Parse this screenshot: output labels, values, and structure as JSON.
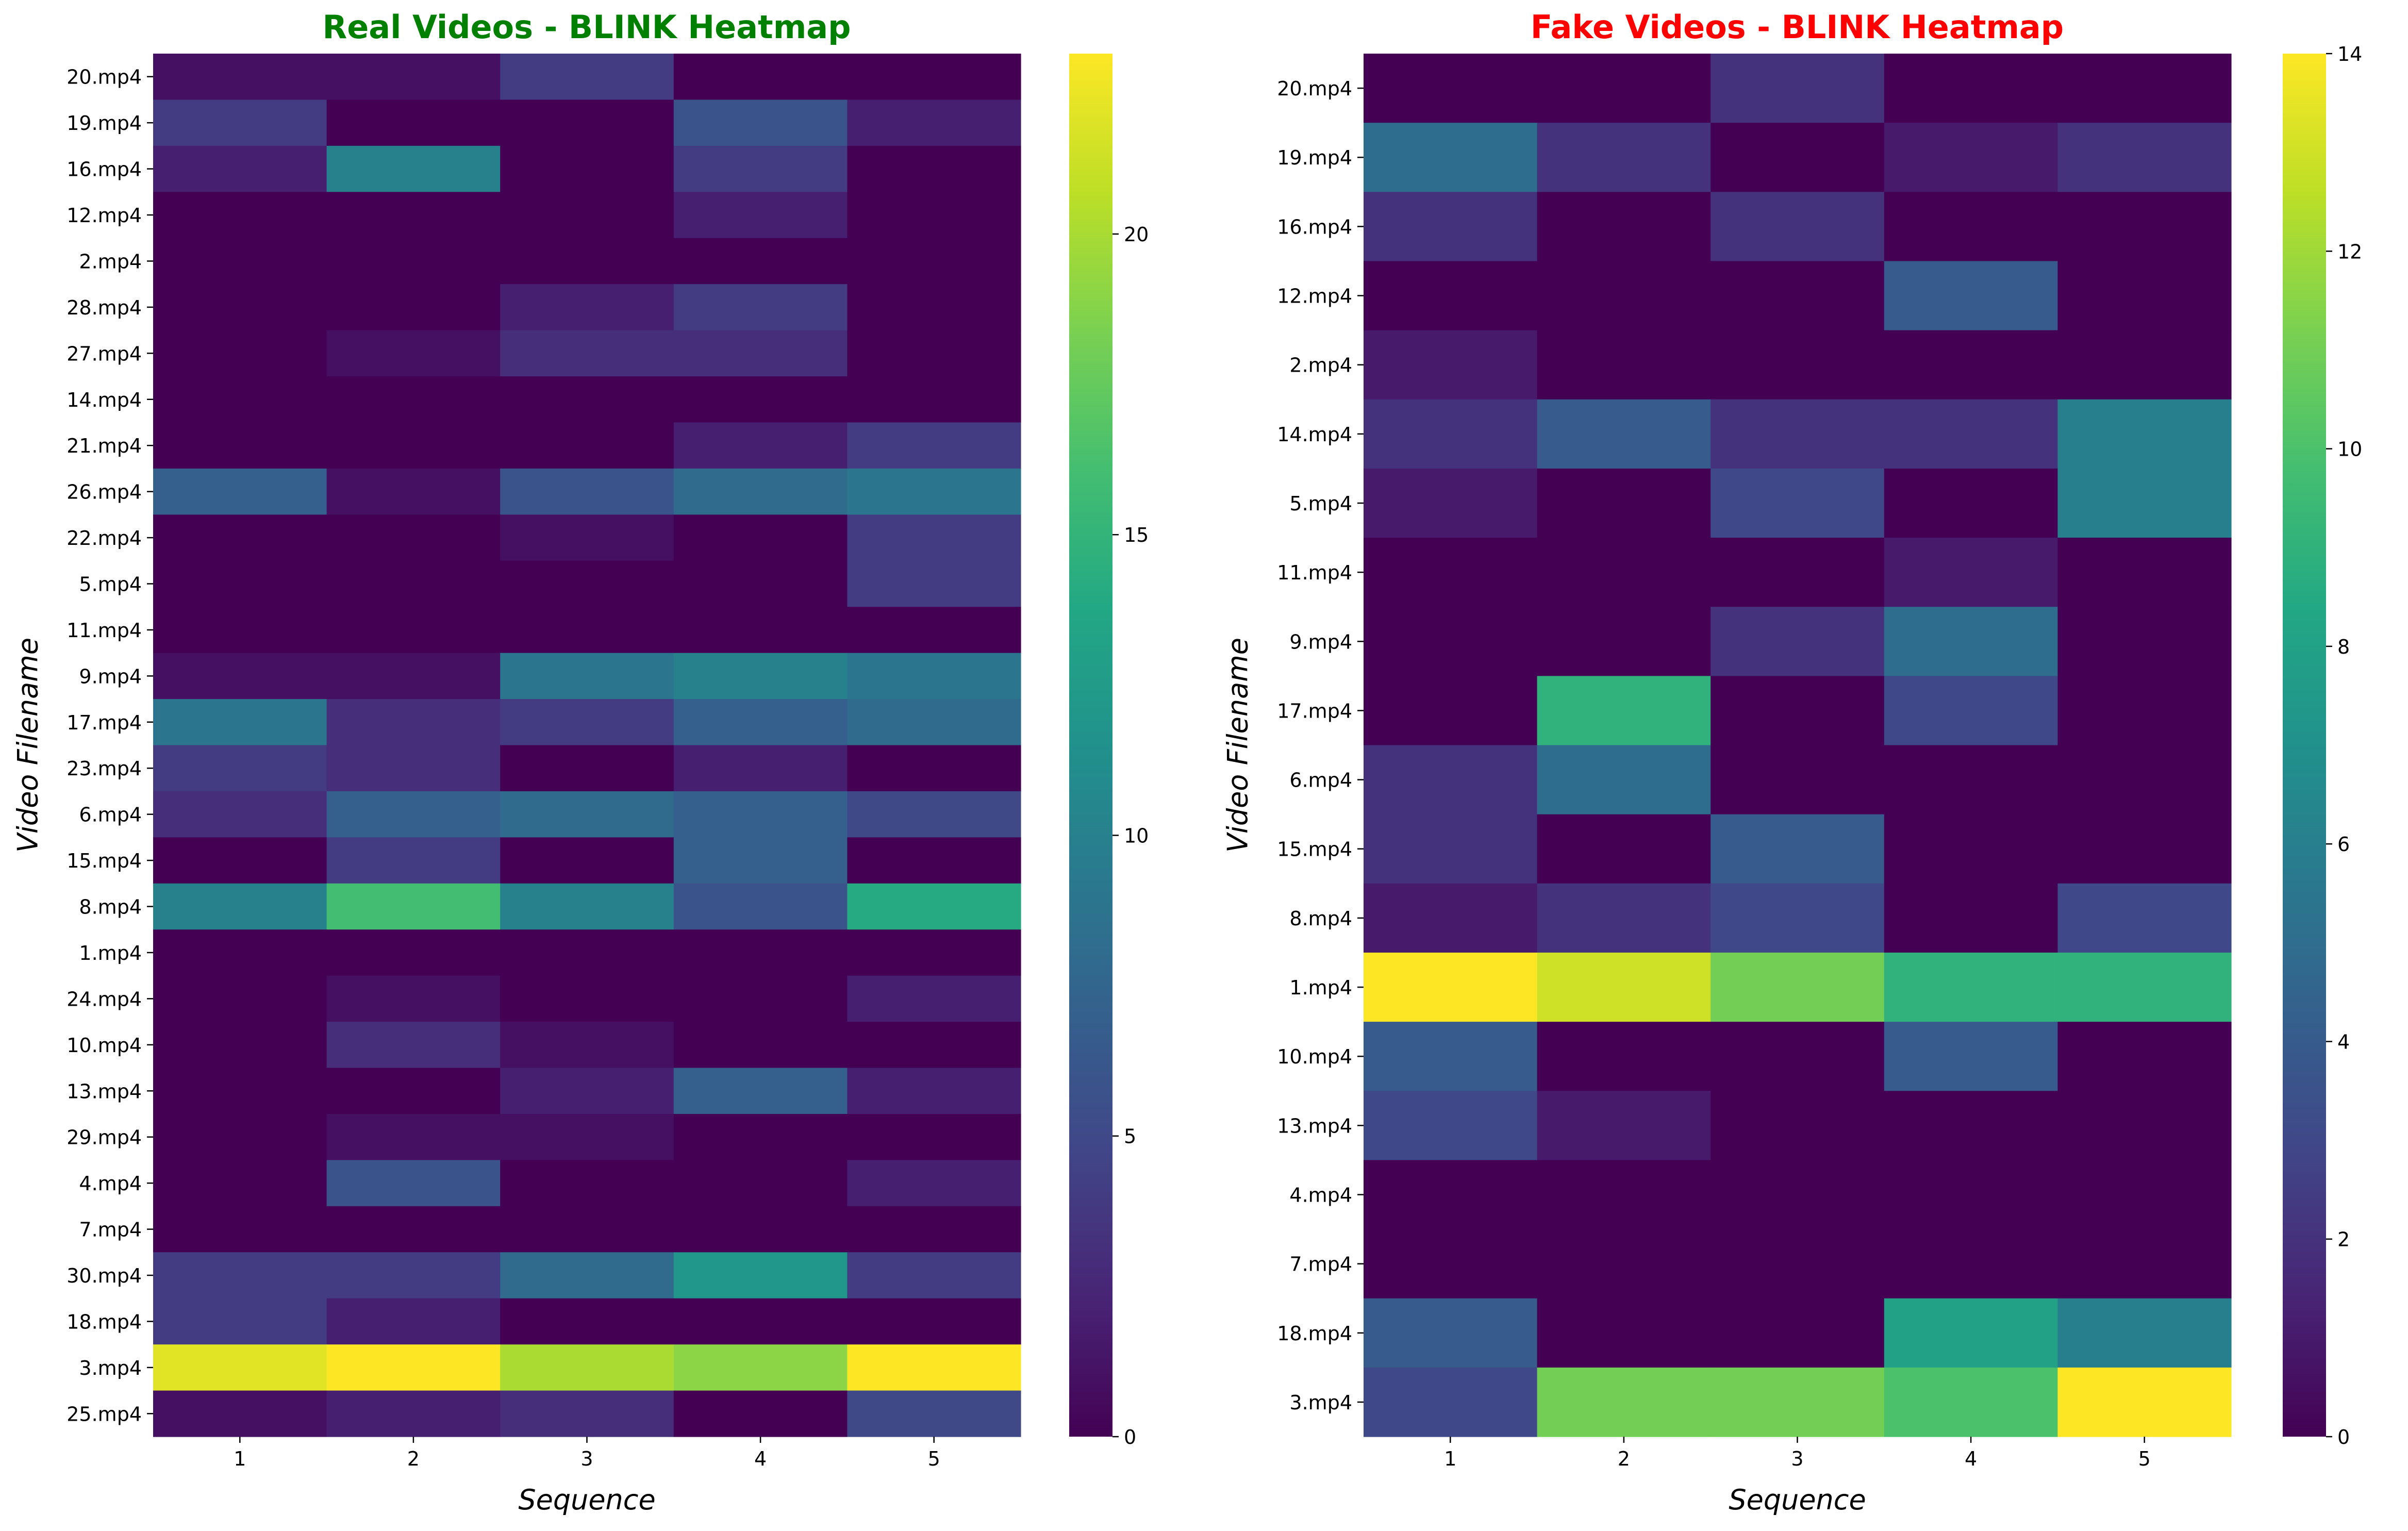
{
  "chart_data": [
    {
      "type": "heatmap",
      "title": "Real Videos - BLINK Heatmap",
      "title_color": "#008000",
      "xlabel": "Sequence",
      "ylabel": "Video Filename",
      "x": [
        "1",
        "2",
        "3",
        "4",
        "5"
      ],
      "y": [
        "20.mp4",
        "19.mp4",
        "16.mp4",
        "12.mp4",
        "2.mp4",
        "28.mp4",
        "27.mp4",
        "14.mp4",
        "21.mp4",
        "26.mp4",
        "22.mp4",
        "5.mp4",
        "11.mp4",
        "9.mp4",
        "17.mp4",
        "23.mp4",
        "6.mp4",
        "15.mp4",
        "8.mp4",
        "1.mp4",
        "24.mp4",
        "10.mp4",
        "13.mp4",
        "29.mp4",
        "4.mp4",
        "7.mp4",
        "30.mp4",
        "18.mp4",
        "3.mp4",
        "25.mp4"
      ],
      "values": [
        [
          1,
          1,
          4,
          0,
          0
        ],
        [
          4,
          0,
          0,
          6,
          2
        ],
        [
          2,
          10,
          0,
          4,
          0
        ],
        [
          0,
          0,
          0,
          2,
          0
        ],
        [
          0,
          0,
          0,
          0,
          0
        ],
        [
          0,
          0,
          2,
          4,
          0
        ],
        [
          0,
          1,
          3,
          3,
          0
        ],
        [
          0,
          0,
          0,
          0,
          0
        ],
        [
          0,
          0,
          0,
          2,
          4
        ],
        [
          7,
          1,
          6,
          8,
          9
        ],
        [
          0,
          0,
          1,
          0,
          4
        ],
        [
          0,
          0,
          0,
          0,
          4
        ],
        [
          0,
          0,
          0,
          0,
          0
        ],
        [
          1,
          1,
          9,
          10,
          9
        ],
        [
          9,
          3,
          4,
          7,
          8
        ],
        [
          4,
          3,
          0,
          2,
          0
        ],
        [
          3,
          7,
          8,
          7,
          5
        ],
        [
          0,
          4,
          0,
          7,
          0
        ],
        [
          10,
          16,
          10,
          6,
          14
        ],
        [
          0,
          0,
          0,
          0,
          0
        ],
        [
          0,
          1,
          0,
          0,
          2
        ],
        [
          0,
          3,
          1,
          0,
          0
        ],
        [
          0,
          0,
          2,
          7,
          2
        ],
        [
          0,
          1,
          1,
          0,
          0
        ],
        [
          0,
          6,
          0,
          0,
          2
        ],
        [
          0,
          0,
          0,
          0,
          0
        ],
        [
          4,
          4,
          8,
          12,
          4
        ],
        [
          4,
          2,
          0,
          0,
          0
        ],
        [
          22,
          23,
          20,
          19,
          23
        ],
        [
          1,
          2,
          3,
          0,
          5
        ]
      ],
      "colorbar": {
        "min": 0,
        "max": 23,
        "ticks": [
          0,
          5,
          10,
          15,
          20
        ]
      },
      "colormap": "viridis",
      "grid": false
    },
    {
      "type": "heatmap",
      "title": "Fake Videos - BLINK Heatmap",
      "title_color": "#ff0000",
      "xlabel": "Sequence",
      "ylabel": "Video Filename",
      "x": [
        "1",
        "2",
        "3",
        "4",
        "5"
      ],
      "y": [
        "20.mp4",
        "19.mp4",
        "16.mp4",
        "12.mp4",
        "2.mp4",
        "14.mp4",
        "5.mp4",
        "11.mp4",
        "9.mp4",
        "17.mp4",
        "6.mp4",
        "15.mp4",
        "8.mp4",
        "1.mp4",
        "10.mp4",
        "13.mp4",
        "4.mp4",
        "7.mp4",
        "18.mp4",
        "3.mp4"
      ],
      "values": [
        [
          0,
          0,
          2,
          0,
          0
        ],
        [
          5,
          2,
          0,
          1,
          2
        ],
        [
          2,
          0,
          2,
          0,
          0
        ],
        [
          0,
          0,
          0,
          4,
          0
        ],
        [
          1,
          0,
          0,
          0,
          0
        ],
        [
          2,
          4,
          2,
          2,
          6
        ],
        [
          1,
          0,
          3,
          0,
          6
        ],
        [
          0,
          0,
          0,
          1,
          0
        ],
        [
          0,
          0,
          2,
          5,
          0
        ],
        [
          0,
          9,
          0,
          3,
          0
        ],
        [
          2,
          5,
          0,
          0,
          0
        ],
        [
          2,
          0,
          4,
          0,
          0
        ],
        [
          1,
          2,
          3,
          0,
          3
        ],
        [
          14,
          13,
          11,
          9,
          9
        ],
        [
          4,
          0,
          0,
          4,
          0
        ],
        [
          3,
          1,
          0,
          0,
          0
        ],
        [
          0,
          0,
          0,
          0,
          0
        ],
        [
          0,
          0,
          0,
          0,
          0
        ],
        [
          4,
          0,
          0,
          8,
          6
        ],
        [
          3,
          11,
          11,
          10,
          14
        ]
      ],
      "colorbar": {
        "min": 0,
        "max": 14,
        "ticks": [
          0,
          2,
          4,
          6,
          8,
          10,
          12,
          14
        ]
      },
      "colormap": "viridis",
      "grid": false
    }
  ]
}
